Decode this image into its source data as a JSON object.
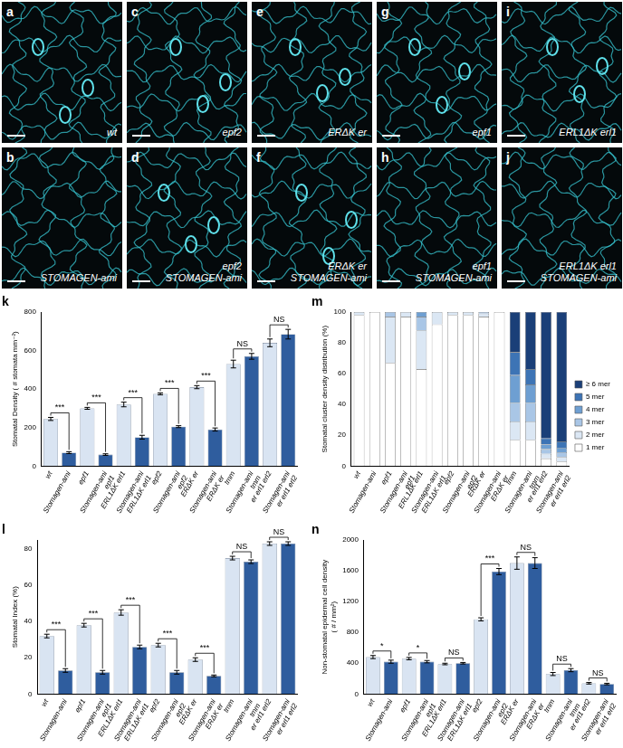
{
  "micrographs": [
    {
      "panel": "a",
      "label": [
        "wt"
      ]
    },
    {
      "panel": "b",
      "label": [
        "STOMAGEN-ami"
      ]
    },
    {
      "panel": "c",
      "label": [
        "epf2"
      ]
    },
    {
      "panel": "d",
      "label": [
        "epf2",
        "STOMAGEN-ami"
      ]
    },
    {
      "panel": "e",
      "label": [
        "ERΔK er"
      ]
    },
    {
      "panel": "f",
      "label": [
        "ERΔK er",
        "STOMAGEN-ami"
      ]
    },
    {
      "panel": "g",
      "label": [
        "epf1"
      ]
    },
    {
      "panel": "h",
      "label": [
        "epf1",
        "STOMAGEN-ami"
      ]
    },
    {
      "panel": "i",
      "label": [
        "ERL1ΔK erl1"
      ]
    },
    {
      "panel": "j",
      "label": [
        "ERL1ΔK erl1",
        "STOMAGEN-ami"
      ]
    }
  ],
  "chart_data": [
    {
      "panel": "k",
      "type": "bar",
      "y_label": [
        "Stomatal Density ( # stomata mm⁻²)"
      ],
      "categories": [
        "wt",
        "Stomagen-ami",
        "epf1",
        [
          "Stomagen-ami",
          "epf1"
        ],
        "ERL1ΔK erl1",
        [
          "Stomagen-ami",
          "ERL1ΔK erl1"
        ],
        "epf2",
        [
          "Stomagen-ami",
          "epf2"
        ],
        "ERΔK er",
        [
          "Stomagen-ami",
          "ERΔK er"
        ],
        "tmm",
        [
          "Stomagen-ami",
          "tmm"
        ],
        "er erl1 erl2",
        [
          "Stomagen-ami",
          "er erl1 erl2"
        ]
      ],
      "values": [
        245,
        70,
        300,
        60,
        320,
        150,
        375,
        205,
        410,
        190,
        530,
        570,
        640,
        685
      ],
      "errors": [
        8,
        5,
        5,
        4,
        12,
        10,
        5,
        5,
        8,
        8,
        20,
        15,
        20,
        25
      ],
      "significance": [
        "***",
        "***",
        "***",
        "***",
        "***",
        "NS",
        "NS"
      ],
      "colors": [
        "#d9e4f2",
        "#2f5d9e",
        "#d9e4f2",
        "#2f5d9e",
        "#d9e4f2",
        "#2f5d9e",
        "#d9e4f2",
        "#2f5d9e",
        "#d9e4f2",
        "#2f5d9e",
        "#d9e4f2",
        "#2f5d9e",
        "#d9e4f2",
        "#2f5d9e"
      ],
      "ylim": [
        0,
        800
      ],
      "yticks": [
        0,
        200,
        400,
        600,
        800
      ],
      "grid": false
    },
    {
      "panel": "m",
      "type": "bar",
      "stacked": true,
      "legend": "right",
      "y_label": [
        "Stomatal cluster density distribution (%)"
      ],
      "categories": [
        "wt",
        "Stomagen-ami",
        "epf1",
        [
          "Stomagen-ami",
          "epf1"
        ],
        "ERL1ΔK erl1",
        [
          "Stomagen-ami",
          "ERL1ΔK erl1"
        ],
        "epf2",
        [
          "Stomagen-ami",
          "epf2"
        ],
        "ERΔK er",
        [
          "Stomagen-ami",
          "ERΔK er"
        ],
        "tmm",
        [
          "Stomagen-ami",
          "tmm"
        ],
        "er erl1 erl2",
        [
          "Stomagen-ami",
          "er erl1 erl2"
        ]
      ],
      "series": [
        {
          "name": "1 mer",
          "color": "#ffffff",
          "values": [
            98,
            100,
            67,
            97,
            63,
            92,
            98,
            98,
            97,
            100,
            17,
            17,
            5,
            3
          ]
        },
        {
          "name": "2 mer",
          "color": "#dbe7f4",
          "values": [
            2,
            0,
            30,
            3,
            25,
            8,
            2,
            2,
            2,
            0,
            12,
            12,
            3,
            3
          ]
        },
        {
          "name": "3 mer",
          "color": "#a9c6e6",
          "values": [
            0,
            0,
            3,
            0,
            9,
            0,
            0,
            0,
            1,
            0,
            12,
            12,
            3,
            3
          ]
        },
        {
          "name": "4 mer",
          "color": "#6e9fd2",
          "values": [
            0,
            0,
            0,
            0,
            3,
            0,
            0,
            0,
            0,
            0,
            18,
            12,
            3,
            3
          ]
        },
        {
          "name": "5 mer",
          "color": "#3d74b5",
          "values": [
            0,
            0,
            0,
            0,
            0,
            0,
            0,
            0,
            0,
            0,
            15,
            10,
            4,
            4
          ]
        },
        {
          "name": "≥ 6 mer",
          "color": "#1a3f78",
          "values": [
            0,
            0,
            0,
            0,
            0,
            0,
            0,
            0,
            0,
            0,
            26,
            37,
            82,
            84
          ]
        }
      ],
      "ylim": [
        0,
        100
      ],
      "yticks": [
        0,
        20,
        40,
        60,
        80,
        100
      ],
      "grid": false
    },
    {
      "panel": "l",
      "type": "bar",
      "y_label": [
        "Stomatal Index (%)"
      ],
      "categories": [
        "wt",
        "Stomagen-ami",
        "epf1",
        [
          "Stomagen-ami",
          "epf1"
        ],
        "ERL1ΔK erl1",
        [
          "Stomagen-ami",
          "ERL1ΔK erl1"
        ],
        "epf2",
        [
          "Stomagen-ami",
          "epf2"
        ],
        "ERΔK er",
        [
          "Stomagen-ami",
          "ERΔK er"
        ],
        "tmm",
        [
          "Stomagen-ami",
          "tmm"
        ],
        "er erl1 erl2",
        [
          "Stomagen-ami",
          "er erl1 erl2"
        ]
      ],
      "values": [
        32,
        13,
        38,
        12,
        45,
        26,
        27,
        12,
        19,
        10,
        75,
        73,
        83,
        83
      ],
      "errors": [
        1,
        1,
        1,
        1,
        1.5,
        1,
        1,
        1,
        1,
        0.5,
        1,
        1,
        1,
        1
      ],
      "significance": [
        "***",
        "***",
        "***",
        "***",
        "***",
        "NS",
        "NS"
      ],
      "colors": [
        "#d9e4f2",
        "#2f5d9e",
        "#d9e4f2",
        "#2f5d9e",
        "#d9e4f2",
        "#2f5d9e",
        "#d9e4f2",
        "#2f5d9e",
        "#d9e4f2",
        "#2f5d9e",
        "#d9e4f2",
        "#2f5d9e",
        "#d9e4f2",
        "#2f5d9e"
      ],
      "ylim": [
        0,
        85
      ],
      "yticks": [
        0,
        20,
        40,
        60,
        80
      ],
      "grid": false
    },
    {
      "panel": "n",
      "type": "bar",
      "y_label": [
        "Non-stomatal epidermal cell density",
        "( # / mm²)"
      ],
      "categories": [
        "wt",
        "Stomagen-ami",
        "epf1",
        [
          "Stomagen-ami",
          "epf1"
        ],
        "ERL1ΔK erl1",
        [
          "Stomagen-ami",
          "ERL1ΔK erl1"
        ],
        "epf2",
        [
          "Stomagen-ami",
          "epf2"
        ],
        "ERΔK er",
        [
          "Stomagen-ami",
          "ERΔK er"
        ],
        "tmm",
        [
          "Stomagen-ami",
          "tmm"
        ],
        "er erl1 erl2",
        [
          "Stomagen-ami",
          "er erl1 erl2"
        ]
      ],
      "values": [
        480,
        420,
        460,
        420,
        390,
        400,
        970,
        1590,
        1700,
        1700,
        260,
        310,
        140,
        130
      ],
      "errors": [
        20,
        20,
        15,
        15,
        10,
        10,
        20,
        40,
        80,
        70,
        20,
        20,
        10,
        10
      ],
      "significance": [
        "*",
        "*",
        "NS",
        "***",
        "NS",
        "NS",
        "NS"
      ],
      "colors": [
        "#d9e4f2",
        "#2f5d9e",
        "#d9e4f2",
        "#2f5d9e",
        "#d9e4f2",
        "#2f5d9e",
        "#d9e4f2",
        "#2f5d9e",
        "#d9e4f2",
        "#2f5d9e",
        "#d9e4f2",
        "#2f5d9e",
        "#d9e4f2",
        "#2f5d9e"
      ],
      "ylim": [
        0,
        2000
      ],
      "yticks": [
        0,
        400,
        800,
        1200,
        1600,
        2000
      ],
      "grid": false
    }
  ]
}
